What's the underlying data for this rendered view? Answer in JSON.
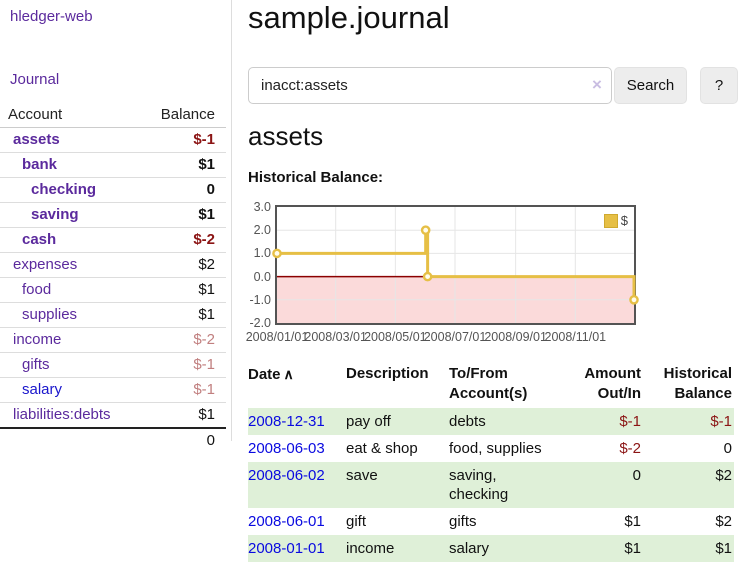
{
  "app": {
    "title": "hledger-web"
  },
  "colors": {
    "accent_purple": "#5b2a9d",
    "link_blue": "#1a16cc",
    "date_link_blue": "#0a0ae0",
    "negative_strong": "#8b1414",
    "negative_soft": "#c17f7f",
    "stripe_green": "#dff0d8",
    "chart_gold": "#e6bf45",
    "chart_negative_fill": "#fbdada",
    "zero_line": "#8b0000"
  },
  "sidebar": {
    "nav_journal": "Journal",
    "accounts_header": {
      "account": "Account",
      "balance": "Balance"
    },
    "accounts": [
      {
        "name": "assets",
        "level": 1,
        "bold": true,
        "balance": "$-1",
        "neg": "strong"
      },
      {
        "name": "bank",
        "level": 2,
        "bold": true,
        "balance": "$1"
      },
      {
        "name": "checking",
        "level": 3,
        "bold": true,
        "balance": "0"
      },
      {
        "name": "saving",
        "level": 3,
        "bold": true,
        "balance": "$1"
      },
      {
        "name": "cash",
        "level": 2,
        "bold": true,
        "balance": "$-2",
        "neg": "strong"
      },
      {
        "name": "expenses",
        "level": 1,
        "bold": false,
        "balance": "$2"
      },
      {
        "name": "food",
        "level": 2,
        "bold": false,
        "balance": "$1"
      },
      {
        "name": "supplies",
        "level": 2,
        "bold": false,
        "balance": "$1"
      },
      {
        "name": "income",
        "level": 1,
        "bold": false,
        "balance": "$-2",
        "neg": "soft"
      },
      {
        "name": "gifts",
        "level": 2,
        "bold": false,
        "balance": "$-1",
        "neg": "soft"
      },
      {
        "name": "salary",
        "level": 2,
        "bold": false,
        "balance": "$-1",
        "neg": "soft",
        "link_color": "blue"
      },
      {
        "name": "liabilities:debts",
        "level": 1,
        "bold": false,
        "balance": "$1"
      }
    ],
    "total": "0"
  },
  "main": {
    "title": "sample.journal",
    "search": {
      "value": "inacct:assets",
      "clear_icon": "×",
      "button": "Search",
      "help_button": "?"
    },
    "account_heading": "assets",
    "chart_heading": "Historical Balance:"
  },
  "chart_data": {
    "type": "line",
    "title": "Historical Balance",
    "step": true,
    "series": [
      {
        "name": "$",
        "color": "#e6bf45",
        "points": [
          {
            "date": "2008-01-01",
            "value": 1
          },
          {
            "date": "2008-06-01",
            "value": 2
          },
          {
            "date": "2008-06-03",
            "value": 0
          },
          {
            "date": "2008-12-31",
            "value": -1
          }
        ]
      }
    ],
    "x_ticks": [
      "2008/01/01",
      "2008/03/01",
      "2008/05/01",
      "2008/07/01",
      "2008/09/01",
      "2008/11/01"
    ],
    "y_ticks": [
      "3.0",
      "2.0",
      "1.0",
      "0.0",
      "-1.0",
      "-2.0"
    ],
    "ylim": [
      -2,
      3
    ],
    "x_start": "2008-01-01",
    "x_range_days": 365,
    "grid": true,
    "legend": {
      "label": "$",
      "swatch_color": "#e6bf45",
      "position": "top-right"
    }
  },
  "register": {
    "headers": {
      "date": "Date",
      "date_sort_icon": "∧",
      "description": "Description",
      "tofrom_line1": "To/From",
      "tofrom_line2": "Account(s)",
      "amount_line1": "Amount",
      "amount_line2": "Out/In",
      "balance_line1": "Historical",
      "balance_line2": "Balance"
    },
    "rows": [
      {
        "date": "2008-12-31",
        "description": "pay off",
        "accounts_lines": [
          "debts"
        ],
        "amount": "$-1",
        "amount_negative": true,
        "balance": "$-1",
        "balance_negative": true
      },
      {
        "date": "2008-06-03",
        "description": "eat & shop",
        "accounts_lines": [
          "food, supplies"
        ],
        "amount": "$-2",
        "amount_negative": true,
        "balance": "0",
        "balance_negative": false
      },
      {
        "date": "2008-06-02",
        "description": "save",
        "accounts_lines": [
          "saving,",
          "checking"
        ],
        "amount": "0",
        "amount_negative": false,
        "balance": "$2",
        "balance_negative": false
      },
      {
        "date": "2008-06-01",
        "description": "gift",
        "accounts_lines": [
          "gifts"
        ],
        "amount": "$1",
        "amount_negative": false,
        "balance": "$2",
        "balance_negative": false
      },
      {
        "date": "2008-01-01",
        "description": "income",
        "accounts_lines": [
          "salary"
        ],
        "amount": "$1",
        "amount_negative": false,
        "balance": "$1",
        "balance_negative": false
      }
    ]
  }
}
